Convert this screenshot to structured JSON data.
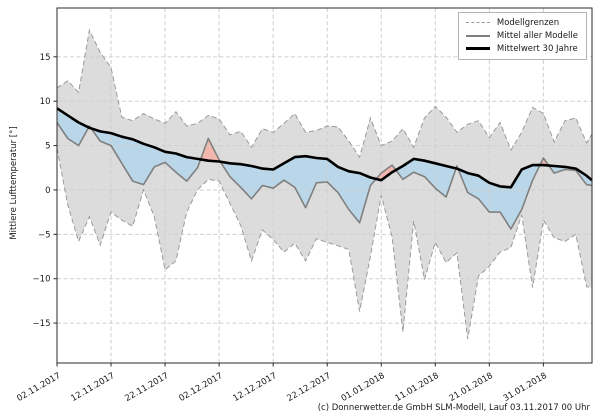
{
  "figure": {
    "caption": "(c) Donnerwetter.de GmbH SLM-Modell, Lauf 03.11.2017 00 Uhr"
  },
  "chart_data": {
    "type": "line",
    "subtype": "ensemble forecast with model range band and anomaly fills",
    "title": "",
    "xlabel": "",
    "ylabel": "Mittlere Lufttemperatur [°]",
    "x_unit": "days from 02.11.2017",
    "xlim": [
      0,
      99
    ],
    "ylim": [
      -19.5,
      20.5
    ],
    "grid": true,
    "x_ticks": [
      0,
      10,
      20,
      30,
      40,
      50,
      60,
      70,
      80,
      90
    ],
    "x_tick_labels": [
      "02.11.2017",
      "12.11.2017",
      "22.11.2017",
      "02.12.2017",
      "12.12.2017",
      "22.12.2017",
      "01.01.2018",
      "11.01.2018",
      "21.01.2018",
      "31.01.2018"
    ],
    "y_ticks": [
      -15,
      -10,
      -5,
      0,
      5,
      10,
      15
    ],
    "legend": {
      "position": "upper right",
      "entries": [
        {
          "label": "Modellgrenzen",
          "style": "dashed-gray"
        },
        {
          "label": "Mittel aller Modelle",
          "style": "solid-gray"
        },
        {
          "label": "Mittelwert 30 Jahre",
          "style": "thick-black"
        }
      ]
    },
    "x": [
      0,
      2,
      4,
      6,
      8,
      10,
      12,
      14,
      16,
      18,
      20,
      22,
      24,
      26,
      28,
      30,
      32,
      34,
      36,
      38,
      40,
      42,
      44,
      46,
      48,
      50,
      52,
      54,
      56,
      58,
      60,
      62,
      64,
      66,
      68,
      70,
      72,
      74,
      76,
      78,
      80,
      82,
      84,
      86,
      88,
      90,
      92,
      94,
      96,
      98,
      99
    ],
    "series": [
      {
        "name": "Modellgrenzen (obere Grenze)",
        "role": "band-upper",
        "values": [
          11.5,
          12.3,
          11.0,
          18.0,
          15.5,
          13.8,
          8.2,
          7.8,
          8.6,
          8.0,
          7.5,
          8.8,
          7.2,
          7.5,
          8.4,
          8.0,
          6.2,
          6.6,
          4.8,
          6.9,
          6.5,
          7.5,
          8.6,
          6.5,
          6.7,
          7.2,
          7.1,
          5.5,
          3.7,
          8.1,
          5.0,
          5.5,
          6.9,
          4.8,
          8.1,
          9.4,
          8.2,
          6.5,
          7.4,
          7.8,
          5.9,
          7.6,
          4.5,
          6.5,
          9.3,
          8.6,
          5.4,
          7.8,
          8.1,
          5.3,
          6.3
        ]
      },
      {
        "name": "Modellgrenzen (untere Grenze)",
        "role": "band-lower",
        "values": [
          4.7,
          -1.7,
          -5.8,
          -3.0,
          -6.2,
          -2.5,
          -3.4,
          -4.1,
          0.0,
          -3.0,
          -9.0,
          -8.0,
          -2.5,
          0.0,
          1.2,
          1.0,
          -1.5,
          -4.0,
          -8.0,
          -4.5,
          -5.6,
          -7.0,
          -6.0,
          -8.0,
          -5.5,
          -5.9,
          -6.3,
          -6.7,
          -13.7,
          -7.5,
          -0.6,
          -5.3,
          -16.0,
          -3.5,
          -10.1,
          -5.9,
          -8.2,
          -7.1,
          -16.8,
          -9.7,
          -8.6,
          -7.0,
          -6.5,
          -2.8,
          -11.0,
          -3.4,
          -5.4,
          -5.8,
          -5.0,
          -10.9,
          -11.0
        ]
      },
      {
        "name": "Mittel aller Modelle",
        "role": "model-mean",
        "values": [
          7.6,
          5.8,
          5.0,
          7.2,
          5.5,
          5.0,
          3.0,
          1.0,
          0.6,
          2.6,
          3.1,
          2.0,
          1.0,
          2.5,
          5.8,
          3.4,
          1.5,
          0.3,
          -1.0,
          0.5,
          0.2,
          1.1,
          0.3,
          -2.0,
          0.8,
          0.9,
          -0.3,
          -2.2,
          -3.7,
          0.5,
          1.9,
          2.8,
          1.2,
          2.0,
          1.5,
          0.2,
          -0.8,
          2.7,
          -0.3,
          -1.0,
          -2.5,
          -2.5,
          -4.4,
          -2.2,
          1.1,
          3.6,
          1.9,
          2.3,
          2.2,
          0.6,
          0.5
        ]
      },
      {
        "name": "Mittelwert 30 Jahre",
        "role": "climate-mean",
        "values": [
          9.2,
          8.4,
          7.6,
          7.0,
          6.6,
          6.4,
          6.0,
          5.7,
          5.2,
          4.8,
          4.3,
          4.1,
          3.7,
          3.5,
          3.3,
          3.2,
          3.0,
          2.9,
          2.7,
          2.4,
          2.3,
          3.0,
          3.7,
          3.8,
          3.6,
          3.5,
          2.6,
          2.1,
          1.9,
          1.4,
          1.1,
          2.0,
          2.7,
          3.5,
          3.3,
          3.0,
          2.7,
          2.4,
          1.9,
          1.6,
          0.8,
          0.4,
          0.3,
          2.3,
          2.8,
          2.8,
          2.7,
          2.6,
          2.4,
          1.6,
          1.1
        ]
      }
    ],
    "fills": {
      "band": "#dcdcdc",
      "below_normal_blue": "#b9d7e8",
      "above_normal_red": "#f3b7ad"
    },
    "colors": {
      "band_edge": "#9a9a9a",
      "model_mean_line": "#808080",
      "climate_mean_line": "#000000",
      "grid": "#cfcfcf",
      "spine": "#2a2a2a"
    }
  }
}
